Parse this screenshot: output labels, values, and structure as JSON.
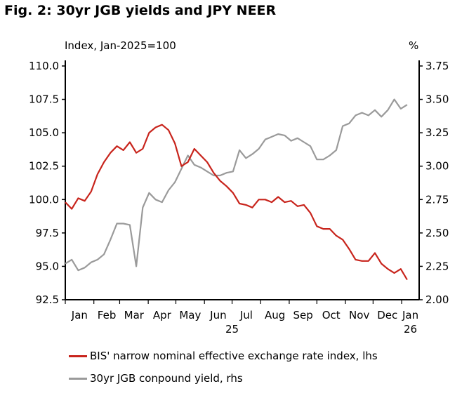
{
  "title": "Fig. 2: 30yr JGB yields and JPY NEER",
  "colors": {
    "neer": "#c8241c",
    "jgb": "#9a9a9a",
    "axis": "#000000"
  },
  "chart_data": {
    "type": "line",
    "title": "Fig. 2: 30yr JGB yields and JPY NEER",
    "ylabel_left": "Index, Jan-2025=100",
    "ylabel_right": "%",
    "ylim_left": [
      92.5,
      110.0
    ],
    "ylim_right": [
      2.0,
      3.75
    ],
    "yticks_left": [
      "110.0",
      "107.5",
      "105.0",
      "102.5",
      "100.0",
      "97.5",
      "95.0",
      "92.5"
    ],
    "yticks_right": [
      "3.75",
      "3.50",
      "3.25",
      "3.00",
      "2.75",
      "2.50",
      "2.25",
      "2.00"
    ],
    "x_month_labels": [
      "Jan",
      "Feb",
      "Mar",
      "Apr",
      "May",
      "Jun",
      "Jul",
      "Aug",
      "Sep",
      "Oct",
      "Nov",
      "Dec",
      "Jan"
    ],
    "x_year_labels": [
      "25",
      "26"
    ],
    "grid": false,
    "legend_placement": "bottom",
    "series": [
      {
        "name": "BIS' narrow nominal effective exchange rate index, lhs",
        "axis": "left",
        "x": [
          "2025-01-01",
          "2025-01-08",
          "2025-01-15",
          "2025-01-22",
          "2025-01-29",
          "2025-02-05",
          "2025-02-12",
          "2025-02-19",
          "2025-02-26",
          "2025-03-05",
          "2025-03-12",
          "2025-03-19",
          "2025-03-26",
          "2025-04-02",
          "2025-04-09",
          "2025-04-16",
          "2025-04-23",
          "2025-04-30",
          "2025-05-07",
          "2025-05-14",
          "2025-05-21",
          "2025-05-28",
          "2025-06-04",
          "2025-06-11",
          "2025-06-18",
          "2025-06-25",
          "2025-07-02",
          "2025-07-09",
          "2025-07-16",
          "2025-07-23",
          "2025-07-30",
          "2025-08-06",
          "2025-08-13",
          "2025-08-20",
          "2025-08-27",
          "2025-09-03",
          "2025-09-10",
          "2025-09-17",
          "2025-09-24",
          "2025-10-01",
          "2025-10-08",
          "2025-10-15",
          "2025-10-22",
          "2025-10-29",
          "2025-11-05",
          "2025-11-12",
          "2025-11-19",
          "2025-11-26",
          "2025-12-03",
          "2025-12-10",
          "2025-12-17",
          "2025-12-24",
          "2025-12-31",
          "2026-01-07"
        ],
        "values": [
          99.8,
          99.3,
          100.1,
          99.9,
          100.6,
          101.9,
          102.8,
          103.5,
          104.0,
          103.7,
          104.3,
          103.5,
          103.8,
          105.0,
          105.4,
          105.6,
          105.2,
          104.2,
          102.5,
          102.8,
          103.8,
          103.3,
          102.8,
          102.0,
          101.4,
          101.0,
          100.5,
          99.7,
          99.6,
          99.4,
          100.0,
          100.0,
          99.8,
          100.2,
          99.8,
          99.9,
          99.5,
          99.6,
          99.0,
          98.0,
          97.8,
          97.8,
          97.3,
          97.0,
          96.3,
          95.5,
          95.4,
          95.4,
          96.0,
          95.2,
          94.8,
          94.5,
          94.8,
          94.0
        ]
      },
      {
        "name": "30yr JGB conpound yield, rhs",
        "axis": "right",
        "x": [
          "2025-01-01",
          "2025-01-08",
          "2025-01-15",
          "2025-01-22",
          "2025-01-29",
          "2025-02-05",
          "2025-02-12",
          "2025-02-19",
          "2025-02-26",
          "2025-03-05",
          "2025-03-12",
          "2025-03-19",
          "2025-03-26",
          "2025-04-02",
          "2025-04-09",
          "2025-04-16",
          "2025-04-23",
          "2025-04-30",
          "2025-05-07",
          "2025-05-14",
          "2025-05-21",
          "2025-05-28",
          "2025-06-04",
          "2025-06-11",
          "2025-06-18",
          "2025-06-25",
          "2025-07-02",
          "2025-07-09",
          "2025-07-16",
          "2025-07-23",
          "2025-07-30",
          "2025-08-06",
          "2025-08-13",
          "2025-08-20",
          "2025-08-27",
          "2025-09-03",
          "2025-09-10",
          "2025-09-17",
          "2025-09-24",
          "2025-10-01",
          "2025-10-08",
          "2025-10-15",
          "2025-10-22",
          "2025-10-29",
          "2025-11-05",
          "2025-11-12",
          "2025-11-19",
          "2025-11-26",
          "2025-12-03",
          "2025-12-10",
          "2025-12-17",
          "2025-12-24",
          "2025-12-31",
          "2026-01-07"
        ],
        "values": [
          2.27,
          2.3,
          2.22,
          2.24,
          2.28,
          2.3,
          2.34,
          2.45,
          2.57,
          2.57,
          2.56,
          2.25,
          2.69,
          2.8,
          2.75,
          2.73,
          2.82,
          2.88,
          2.98,
          3.08,
          3.01,
          2.99,
          2.96,
          2.93,
          2.93,
          2.95,
          2.96,
          3.12,
          3.06,
          3.09,
          3.13,
          3.2,
          3.22,
          3.24,
          3.23,
          3.19,
          3.21,
          3.18,
          3.15,
          3.05,
          3.05,
          3.08,
          3.12,
          3.3,
          3.32,
          3.38,
          3.4,
          3.38,
          3.42,
          3.37,
          3.42,
          3.5,
          3.43,
          3.46
        ]
      }
    ]
  }
}
